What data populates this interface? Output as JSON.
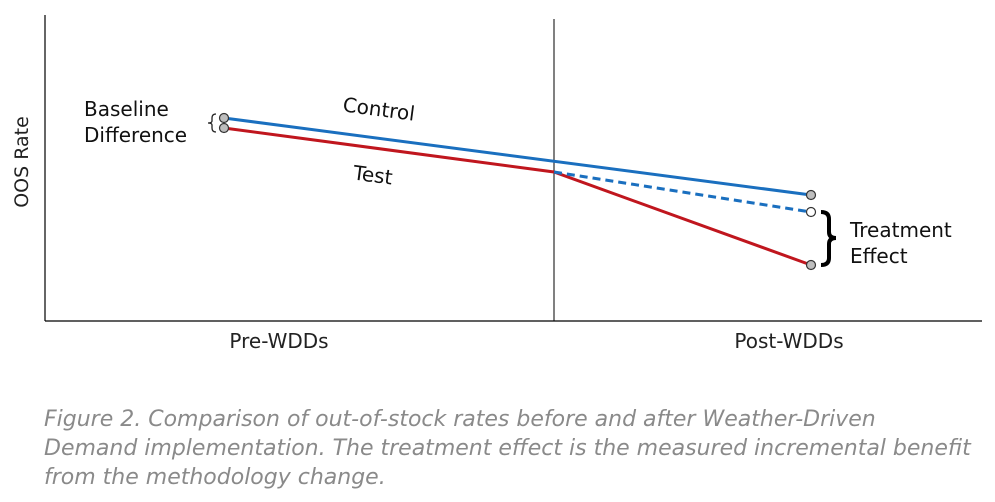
{
  "chart_data": {
    "type": "line",
    "title": "",
    "xlabel": "",
    "ylabel": "OOS Rate",
    "categories": [
      "Pre-WDDs",
      "Post-WDDs"
    ],
    "grid": false,
    "series": [
      {
        "name": "Control",
        "color": "#1a6fbf",
        "style": "solid"
      },
      {
        "name": "Test",
        "color": "#c0161e",
        "style": "solid"
      },
      {
        "name": "",
        "color": "#1a6fbf",
        "style": "dashed"
      }
    ],
    "annotations": {
      "baseline_difference": [
        "Baseline",
        "Difference"
      ],
      "treatment_effect": [
        "Treatment",
        "Effect"
      ]
    }
  },
  "caption": "Figure 2. Comparison of out-of-stock rates before and after Weather-Driven Demand implementation. The treatment effect is the measured incremental benefit from the methodology change."
}
